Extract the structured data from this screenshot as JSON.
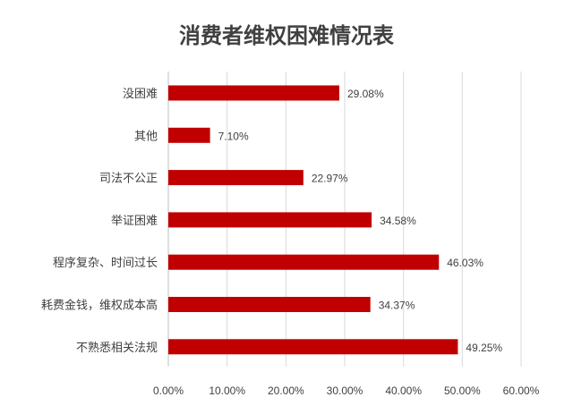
{
  "chart_data": {
    "type": "bar",
    "orientation": "horizontal",
    "title": "消费者维权困难情况表",
    "categories": [
      "没困难",
      "其他",
      "司法不公正",
      "举证困难",
      "程序复杂、时间过长",
      "耗费金钱，维权成本高",
      "不熟悉相关法规"
    ],
    "values": [
      29.08,
      7.1,
      22.97,
      34.58,
      46.03,
      34.37,
      49.25
    ],
    "value_labels": [
      "29.08%",
      "7.10%",
      "22.97%",
      "34.58%",
      "46.03%",
      "34.37%",
      "49.25%"
    ],
    "xlim": [
      0,
      60
    ],
    "xticks": [
      "0.00%",
      "10.00%",
      "20.00%",
      "30.00%",
      "40.00%",
      "50.00%",
      "60.00%"
    ],
    "grid": true,
    "bar_color": "#c00000",
    "grid_color": "#d9d9d9"
  }
}
